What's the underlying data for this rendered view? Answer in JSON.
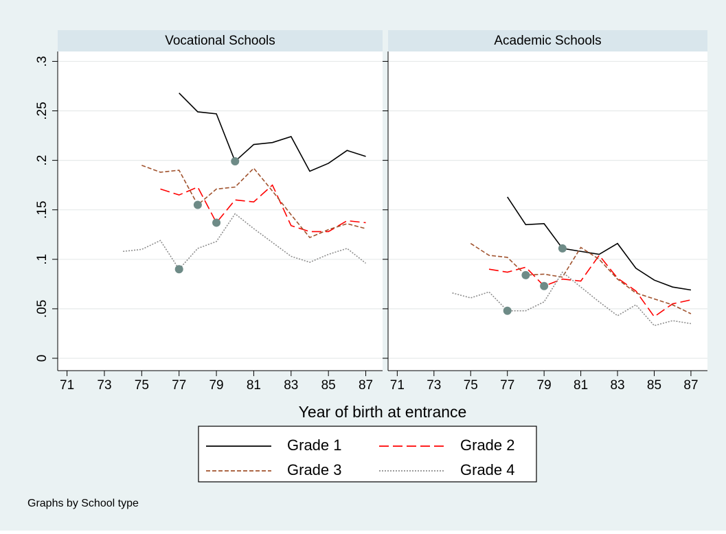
{
  "chart_data": [
    {
      "type": "line",
      "title": "Vocational Schools",
      "x_label": "Year of birth at entrance",
      "x": [
        74,
        75,
        76,
        77,
        78,
        79,
        80,
        81,
        82,
        83,
        84,
        85,
        86,
        87
      ],
      "xlim": [
        70.5,
        87.9
      ],
      "xticks": [
        71,
        73,
        75,
        77,
        79,
        81,
        83,
        85,
        87
      ],
      "ylim": [
        -0.0125,
        0.31
      ],
      "yticks": [
        0,
        {
          "value": 0.05,
          "label": ".05"
        },
        {
          "value": 0.1,
          "label": ".1"
        },
        {
          "value": 0.15,
          "label": ".15"
        },
        {
          "value": 0.2,
          "label": ".2"
        },
        {
          "value": 0.25,
          "label": ".25"
        },
        {
          "value": 0.3,
          "label": ".3"
        }
      ],
      "grid": true,
      "series": [
        {
          "name": "Grade 1",
          "color": "#000000",
          "dash": "none",
          "values": [
            null,
            null,
            null,
            0.268,
            0.249,
            0.247,
            0.199,
            0.216,
            0.218,
            0.224,
            0.189,
            0.197,
            0.21,
            0.204
          ]
        },
        {
          "name": "Grade 2",
          "color": "#ff0000",
          "dash": "14 6",
          "values": [
            null,
            null,
            0.171,
            0.165,
            0.173,
            0.137,
            0.16,
            0.158,
            0.175,
            0.134,
            0.128,
            0.128,
            0.139,
            0.137
          ]
        },
        {
          "name": "Grade 3",
          "color": "#a0522d",
          "dash": "6 3",
          "values": [
            null,
            0.195,
            0.188,
            0.19,
            0.155,
            0.171,
            0.173,
            0.192,
            0.169,
            0.145,
            0.122,
            0.13,
            0.136,
            0.131
          ]
        },
        {
          "name": "Grade 4",
          "color": "#8c8c8c",
          "dash": "2 2",
          "values": [
            0.108,
            0.11,
            0.119,
            0.09,
            0.111,
            0.118,
            0.146,
            0.131,
            0.117,
            0.103,
            0.097,
            0.105,
            0.111,
            0.096
          ]
        }
      ],
      "markers": {
        "color": "#6e8b87",
        "x": [
          80,
          78,
          79,
          77
        ],
        "values": [
          0.199,
          0.155,
          0.137,
          0.09
        ]
      }
    },
    {
      "type": "line",
      "title": "Academic Schools",
      "x": [
        74,
        75,
        76,
        77,
        78,
        79,
        80,
        81,
        82,
        83,
        84,
        85,
        86,
        87
      ],
      "xlim": [
        70.5,
        87.9
      ],
      "xticks": [
        71,
        73,
        75,
        77,
        79,
        81,
        83,
        85,
        87
      ],
      "ylim": [
        -0.0125,
        0.31
      ],
      "yticks": [
        0,
        {
          "value": 0.05,
          "label": ".05"
        },
        {
          "value": 0.1,
          "label": ".1"
        },
        {
          "value": 0.15,
          "label": ".15"
        },
        {
          "value": 0.2,
          "label": ".2"
        },
        {
          "value": 0.25,
          "label": ".25"
        },
        {
          "value": 0.3,
          "label": ".3"
        }
      ],
      "grid": true,
      "series": [
        {
          "name": "Grade 1",
          "color": "#000000",
          "dash": "none",
          "values": [
            null,
            null,
            null,
            0.163,
            0.135,
            0.136,
            0.111,
            0.108,
            0.105,
            0.116,
            0.091,
            0.079,
            0.072,
            0.069
          ]
        },
        {
          "name": "Grade 2",
          "color": "#ff0000",
          "dash": "14 6",
          "values": [
            null,
            null,
            0.09,
            0.087,
            0.092,
            0.073,
            0.08,
            0.078,
            0.104,
            0.081,
            0.068,
            0.042,
            0.055,
            0.059
          ]
        },
        {
          "name": "Grade 3",
          "color": "#a0522d",
          "dash": "6 3",
          "values": [
            null,
            0.116,
            0.104,
            0.102,
            0.084,
            0.085,
            0.082,
            0.112,
            0.1,
            0.08,
            0.066,
            0.06,
            0.054,
            0.045
          ]
        },
        {
          "name": "Grade 4",
          "color": "#8c8c8c",
          "dash": "2 2",
          "values": [
            0.066,
            0.061,
            0.067,
            0.048,
            0.048,
            0.057,
            0.087,
            0.072,
            0.057,
            0.043,
            0.054,
            0.033,
            0.038,
            0.035
          ]
        }
      ],
      "markers": {
        "color": "#6e8b87",
        "x": [
          80,
          78,
          79,
          77
        ],
        "values": [
          0.111,
          0.084,
          0.073,
          0.048
        ]
      }
    }
  ],
  "note": "Graphs by School type"
}
